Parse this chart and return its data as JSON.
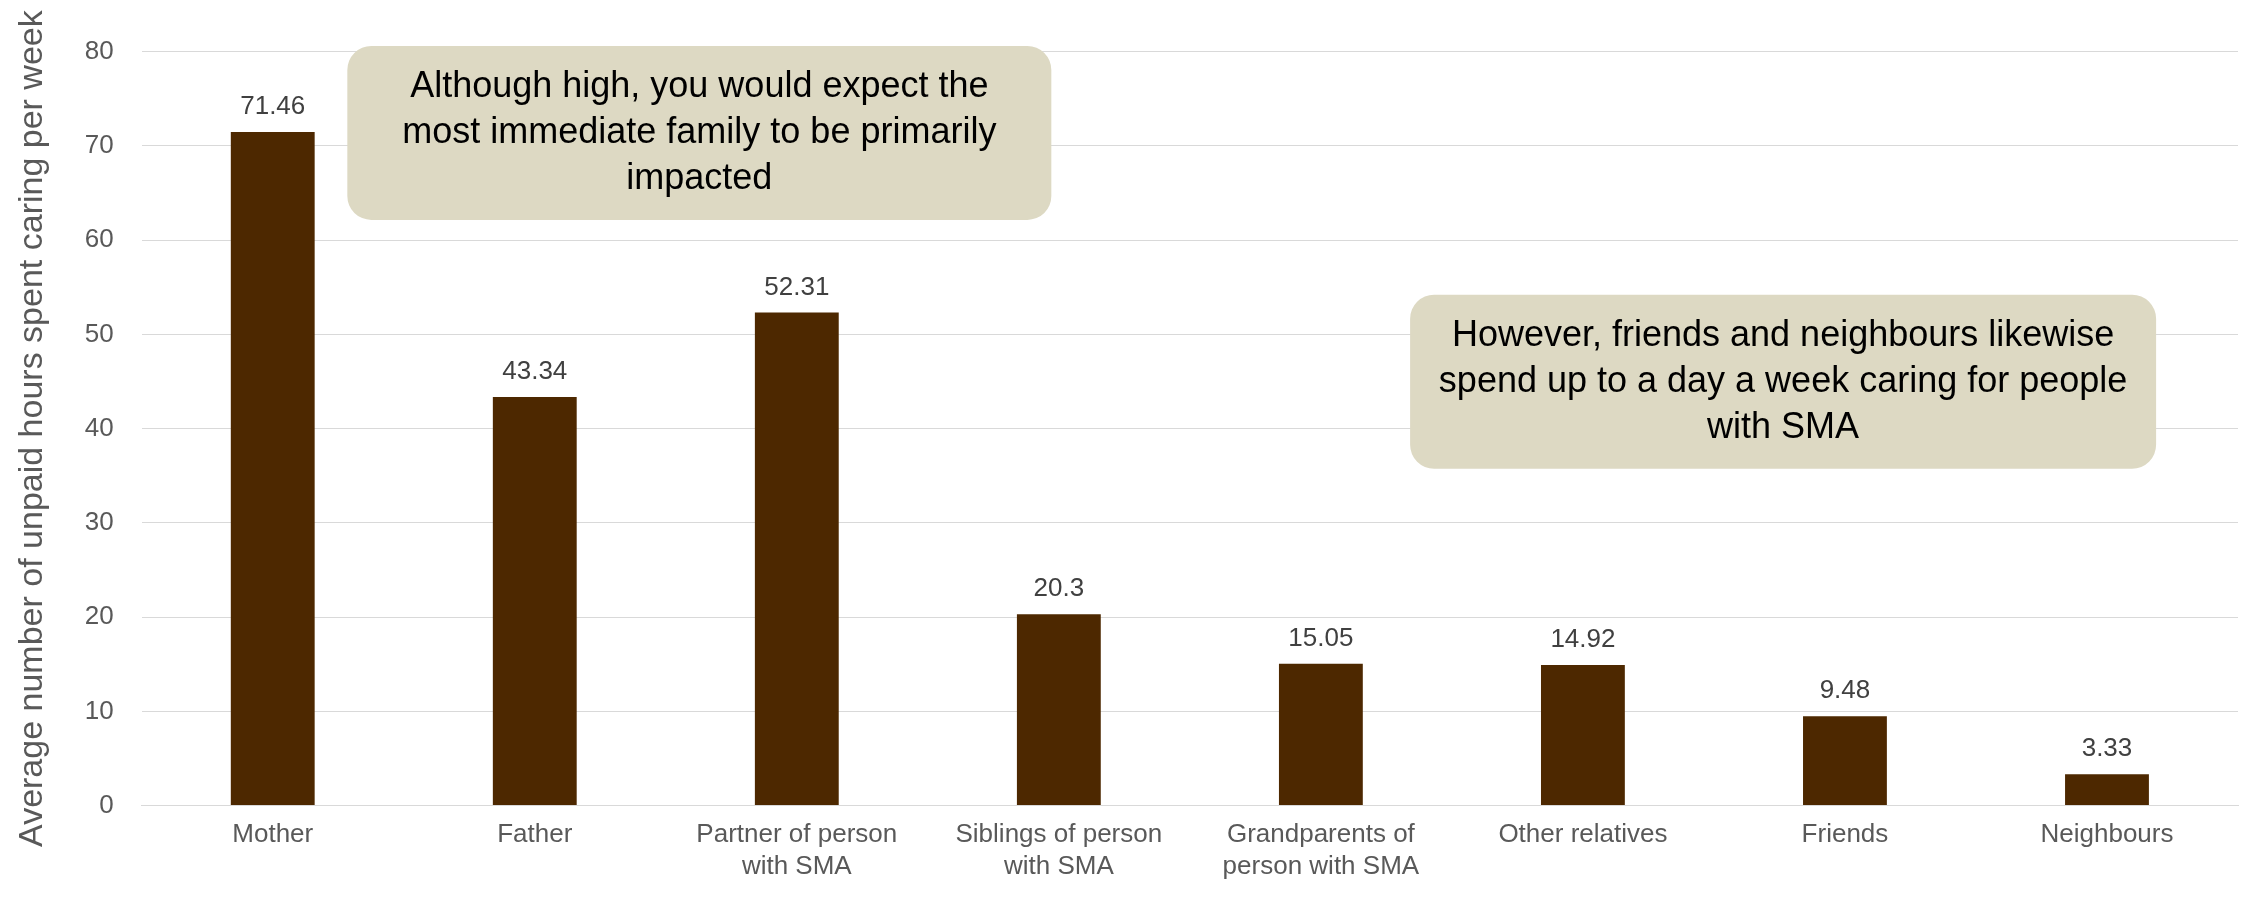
{
  "chart_data": {
    "type": "bar",
    "ylabel": "Average number of unpaid hours spent caring per week",
    "categories": [
      "Mother",
      "Father",
      "Partner of person with SMA",
      "Siblings of person with SMA",
      "Grandparents of person with SMA",
      "Other relatives",
      "Friends",
      "Neighbours"
    ],
    "values": [
      71.46,
      43.34,
      52.31,
      20.3,
      15.05,
      14.92,
      9.48,
      3.33
    ],
    "color": "#4d2800",
    "ylim": [
      0,
      80
    ],
    "yticks": [
      0,
      10,
      20,
      30,
      40,
      50,
      60,
      70,
      80
    ],
    "grid": "y",
    "data_labels": true,
    "legend": false,
    "annotations": [
      "Although high, you would expect the most immediate family to be primarily impacted",
      "However, friends and neighbours likewise spend up to a day a week caring for people with SMA"
    ]
  }
}
